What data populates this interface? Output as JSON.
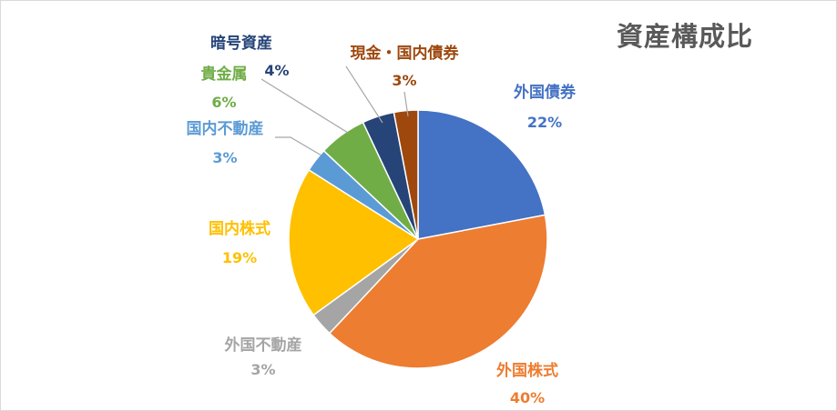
{
  "chart_data": {
    "type": "pie",
    "title": "資産構成比",
    "slices": [
      {
        "name": "外国債券",
        "label": "22%",
        "value": 22,
        "color": "#4472C4"
      },
      {
        "name": "外国株式",
        "label": "40%",
        "value": 40,
        "color": "#ED7D31"
      },
      {
        "name": "外国不動産",
        "label": "3%",
        "value": 3,
        "color": "#A5A5A5"
      },
      {
        "name": "国内株式",
        "label": "19%",
        "value": 19,
        "color": "#FFC000"
      },
      {
        "name": "国内不動産",
        "label": "3%",
        "value": 3,
        "color": "#5B9BD5"
      },
      {
        "name": "貴金属",
        "label": "6%",
        "value": 6,
        "color": "#70AD47"
      },
      {
        "name": "暗号資産",
        "label": "4%",
        "value": 4,
        "color": "#264478"
      },
      {
        "name": "現金・国内債券",
        "label": "3%",
        "value": 3,
        "color": "#9E480E"
      }
    ],
    "legend": "none",
    "data_labels": "outside"
  }
}
